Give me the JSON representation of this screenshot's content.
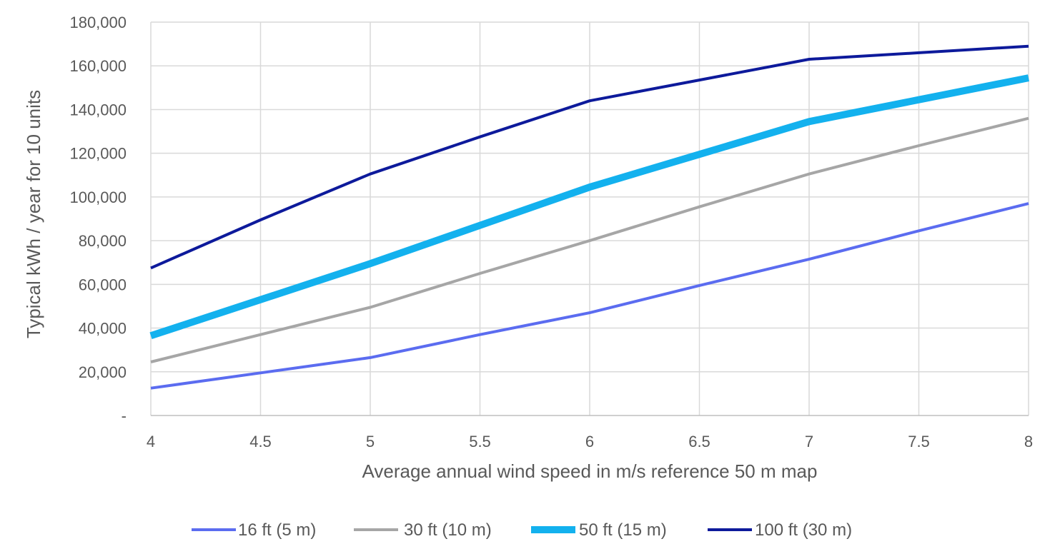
{
  "chart_data": {
    "type": "line",
    "title": "",
    "xlabel": "Average annual wind speed in m/s reference 50 m map",
    "ylabel": "Typical kWh / year for 10 units",
    "xlim": [
      4,
      8
    ],
    "ylim": [
      0,
      180000
    ],
    "x_ticks": [
      "4",
      "4.5",
      "5",
      "5.5",
      "6",
      "6.5",
      "7",
      "7.5",
      "8"
    ],
    "y_ticks": [
      "-",
      "20,000",
      "40,000",
      "60,000",
      "80,000",
      "100,000",
      "120,000",
      "140,000",
      "160,000",
      "180,000"
    ],
    "grid": true,
    "legend_position": "bottom",
    "x": [
      4,
      4.5,
      5,
      5.5,
      6,
      6.5,
      7,
      7.5,
      8
    ],
    "series": [
      {
        "name": "16 ft (5 m)",
        "color": "#5B6CF0",
        "values": [
          12500,
          19500,
          26500,
          37000,
          47000,
          59500,
          71500,
          84500,
          97000
        ]
      },
      {
        "name": "30 ft (10 m)",
        "color": "#A6A6A6",
        "values": [
          24500,
          37000,
          49500,
          65000,
          80000,
          95500,
          110500,
          123500,
          136000
        ]
      },
      {
        "name": "50 ft (15 m)",
        "color": "#13B1EE",
        "values": [
          36500,
          53000,
          69500,
          87000,
          104500,
          119500,
          134500,
          144500,
          154500
        ]
      },
      {
        "name": "100 ft (30 m)",
        "color": "#0D1A9B",
        "values": [
          67500,
          89500,
          110500,
          127500,
          144000,
          153500,
          163000,
          166000,
          169000
        ]
      }
    ]
  }
}
